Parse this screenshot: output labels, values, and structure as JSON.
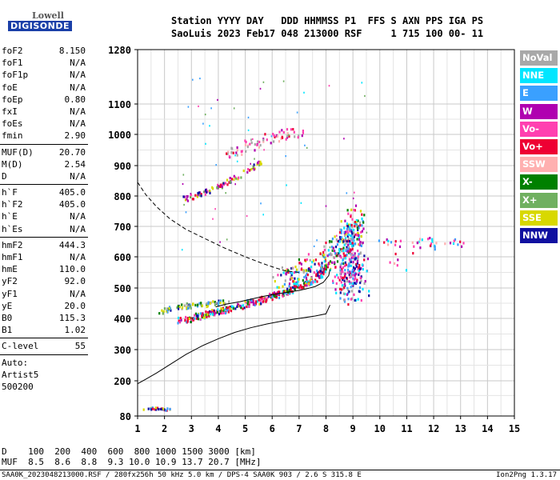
{
  "logo": {
    "lowell": "Lowell",
    "digisonde": "DIGISONDE"
  },
  "header": {
    "line1": "Station YYYY DAY   DDD HHMMSS P1  FFS S AXN PPS IGA PS",
    "line2": "SaoLuis 2023 Feb17 048 213000 RSF     1 715 100 00- 11"
  },
  "params": [
    {
      "label": "foF2",
      "value": "8.150"
    },
    {
      "label": "foF1",
      "value": "N/A"
    },
    {
      "label": "foF1p",
      "value": "N/A"
    },
    {
      "label": "foE",
      "value": "N/A"
    },
    {
      "label": "foEp",
      "value": "0.80"
    },
    {
      "label": "fxI",
      "value": "N/A"
    },
    {
      "label": "foEs",
      "value": "N/A"
    },
    {
      "label": "fmin",
      "value": "2.90"
    },
    {
      "sep": true
    },
    {
      "label": "MUF(D)",
      "value": "20.70"
    },
    {
      "label": "M(D)",
      "value": "2.54"
    },
    {
      "label": "D",
      "value": "N/A"
    },
    {
      "sep": true
    },
    {
      "label": "h`F",
      "value": "405.0"
    },
    {
      "label": "h`F2",
      "value": "405.0"
    },
    {
      "label": "h`E",
      "value": "N/A"
    },
    {
      "label": "h`Es",
      "value": "N/A"
    },
    {
      "sep": true
    },
    {
      "label": "hmF2",
      "value": "444.3"
    },
    {
      "label": "hmF1",
      "value": "N/A"
    },
    {
      "label": "hmE",
      "value": "110.0"
    },
    {
      "label": "yF2",
      "value": "92.0"
    },
    {
      "label": "yF1",
      "value": "N/A"
    },
    {
      "label": "yE",
      "value": "20.0"
    },
    {
      "label": "B0",
      "value": "115.3"
    },
    {
      "label": "B1",
      "value": "1.02"
    },
    {
      "sep": true
    },
    {
      "label": "C-level",
      "value": "55"
    },
    {
      "sep": true
    },
    {
      "text": "Auto:"
    },
    {
      "text": "Artist5"
    },
    {
      "text": "500200"
    }
  ],
  "legend": [
    {
      "label": "NoVal",
      "color": "#a8a8a8"
    },
    {
      "label": "NNE",
      "color": "#00e6ff"
    },
    {
      "label": "E",
      "color": "#3aa0ff"
    },
    {
      "label": "W",
      "color": "#b000b0"
    },
    {
      "label": "Vo-",
      "color": "#ff40b0"
    },
    {
      "label": "Vo+",
      "color": "#ee0033"
    },
    {
      "label": "SSW",
      "color": "#ffb0b0"
    },
    {
      "label": "X-",
      "color": "#008000"
    },
    {
      "label": "X+",
      "color": "#70b060"
    },
    {
      "label": "SSE",
      "color": "#d8d800"
    },
    {
      "label": "NNW",
      "color": "#1010a0"
    }
  ],
  "chart_data": {
    "type": "scatter",
    "x_ticks": [
      1,
      2,
      3,
      4,
      5,
      6,
      7,
      8,
      9,
      10,
      11,
      12,
      13,
      14,
      15
    ],
    "y_ticks": [
      80,
      200,
      300,
      400,
      500,
      600,
      700,
      800,
      900,
      1000,
      1100,
      1280
    ],
    "xlim": [
      1,
      15
    ],
    "ylim": [
      80,
      1280
    ],
    "grid": true,
    "y_scale": "ionogram virtual height (compressed above 1100)",
    "profile_curve": [
      [
        1.0,
        190
      ],
      [
        1.3,
        205
      ],
      [
        1.7,
        225
      ],
      [
        2.2,
        252
      ],
      [
        2.8,
        285
      ],
      [
        3.4,
        312
      ],
      [
        4.0,
        335
      ],
      [
        4.6,
        355
      ],
      [
        5.2,
        370
      ],
      [
        5.8,
        382
      ],
      [
        6.4,
        392
      ],
      [
        7.0,
        400
      ],
      [
        7.6,
        408
      ],
      [
        8.0,
        415
      ],
      [
        8.15,
        444
      ]
    ],
    "dashed_curve": [
      [
        1.0,
        845
      ],
      [
        1.3,
        805
      ],
      [
        1.7,
        765
      ],
      [
        2.2,
        725
      ],
      [
        2.8,
        690
      ],
      [
        3.5,
        660
      ],
      [
        4.2,
        630
      ],
      [
        5.0,
        600
      ],
      [
        5.6,
        580
      ],
      [
        6.1,
        565
      ],
      [
        6.5,
        555
      ],
      [
        7.0,
        550
      ]
    ],
    "trace_curve": [
      [
        3.9,
        438
      ],
      [
        4.3,
        447
      ],
      [
        4.8,
        455
      ],
      [
        5.3,
        465
      ],
      [
        5.7,
        473
      ],
      [
        6.0,
        478
      ],
      [
        6.3,
        482
      ],
      [
        6.7,
        488
      ],
      [
        7.0,
        492
      ],
      [
        7.3,
        498
      ],
      [
        7.6,
        505
      ],
      [
        7.9,
        518
      ],
      [
        8.1,
        540
      ],
      [
        8.15,
        560
      ]
    ],
    "echo_traces": [
      {
        "name": "F2 O trace",
        "points": [
          [
            2.5,
            396
          ],
          [
            3.0,
            405
          ],
          [
            3.5,
            415
          ],
          [
            4.0,
            425
          ],
          [
            4.5,
            438
          ],
          [
            5.0,
            450
          ],
          [
            5.5,
            462
          ],
          [
            6.0,
            476
          ],
          [
            6.5,
            490
          ],
          [
            7.0,
            508
          ],
          [
            7.5,
            528
          ],
          [
            7.8,
            550
          ],
          [
            8.0,
            580
          ]
        ]
      },
      {
        "name": "F2 O trace upper",
        "points": [
          [
            1.7,
            420
          ],
          [
            2.2,
            436
          ],
          [
            2.8,
            444
          ],
          [
            3.3,
            448
          ],
          [
            3.8,
            452
          ],
          [
            4.3,
            456
          ]
        ]
      },
      {
        "name": "F2 X trace",
        "points": [
          [
            6.3,
            520
          ],
          [
            6.8,
            540
          ],
          [
            7.3,
            560
          ],
          [
            7.8,
            590
          ],
          [
            8.3,
            620
          ],
          [
            8.7,
            660
          ],
          [
            9.0,
            700
          ],
          [
            9.1,
            740
          ]
        ]
      },
      {
        "name": "Multiple echo",
        "points": [
          [
            2.7,
            793
          ],
          [
            3.2,
            808
          ],
          [
            3.7,
            825
          ],
          [
            4.2,
            845
          ],
          [
            4.7,
            868
          ],
          [
            5.2,
            893
          ],
          [
            5.6,
            912
          ]
        ]
      },
      {
        "name": "Upper multiple",
        "points": [
          [
            4.2,
            935
          ],
          [
            5.0,
            965
          ],
          [
            5.8,
            990
          ],
          [
            6.5,
            1005
          ],
          [
            7.0,
            1010
          ]
        ]
      },
      {
        "name": "Scattered cluster",
        "points": [
          [
            8.5,
            520
          ],
          [
            8.8,
            560
          ],
          [
            9.0,
            600
          ],
          [
            9.2,
            640
          ],
          [
            8.7,
            480
          ],
          [
            9.3,
            520
          ],
          [
            8.6,
            620
          ],
          [
            9.0,
            680
          ]
        ]
      },
      {
        "name": "Low echoes",
        "points": [
          [
            1.2,
            105
          ],
          [
            1.4,
            110
          ],
          [
            1.6,
            108
          ],
          [
            1.8,
            112
          ],
          [
            2.0,
            106
          ],
          [
            2.2,
            110
          ]
        ]
      },
      {
        "name": "Sparse far echoes",
        "points": [
          [
            10.1,
            645
          ],
          [
            10.6,
            650
          ],
          [
            11.2,
            640
          ],
          [
            11.6,
            655
          ],
          [
            12.0,
            645
          ],
          [
            12.6,
            650
          ],
          [
            13.0,
            648
          ],
          [
            10.4,
            600
          ],
          [
            10.9,
            560
          ]
        ]
      }
    ]
  },
  "footer": {
    "line1": "D    100  200  400  600  800 1000 1500 3000 [km]",
    "line2": "MUF  8.5  8.6  8.8  9.3 10.0 10.9 13.7 20.7 [MHz]",
    "line3": "SAA0K_2023048213000.RSF / 280fx256h 50 kHz 5.0 km / DPS-4 SAA0K 903 / 2.6 S 315.8 E",
    "version": "Ion2Png 1.3.17"
  }
}
